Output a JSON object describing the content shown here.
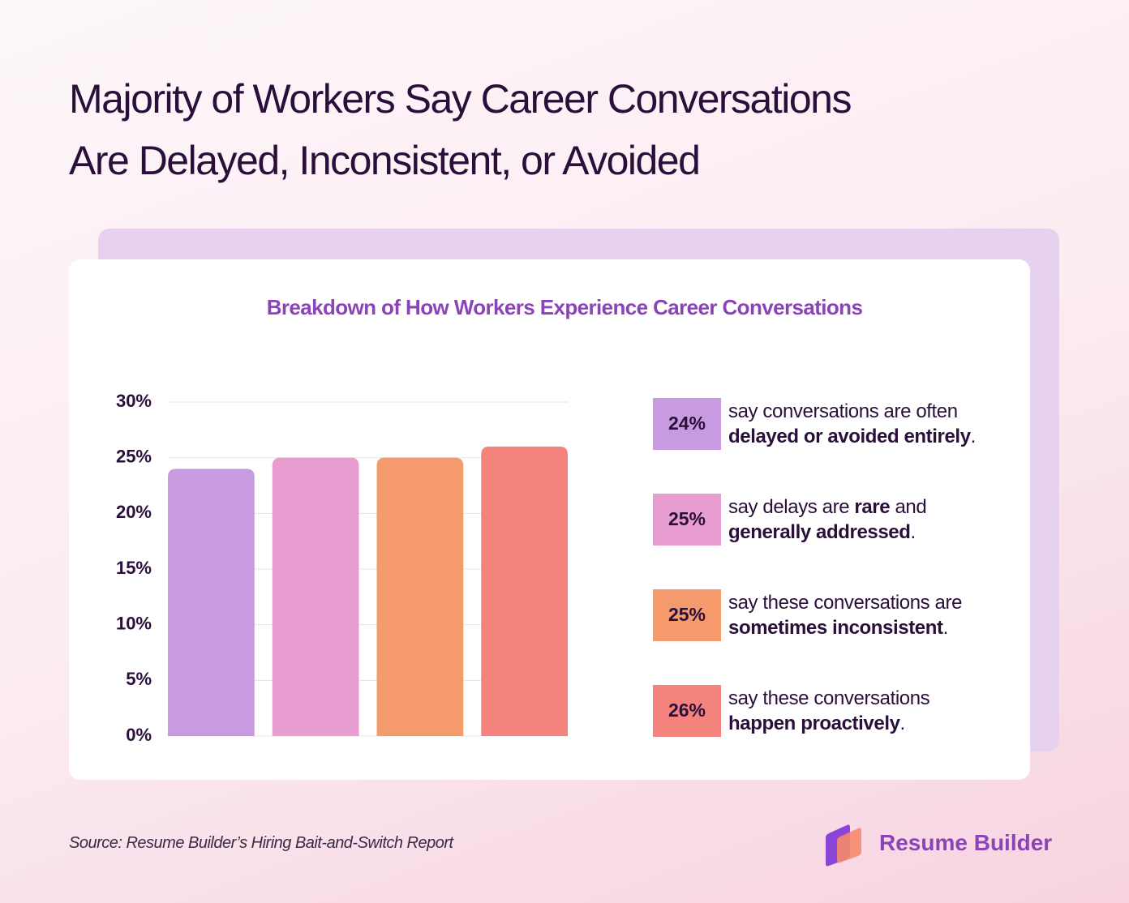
{
  "title": [
    "Majority of Workers Say Career Conversations",
    "Are Delayed, Inconsistent, or Avoided"
  ],
  "chart_data": {
    "type": "bar",
    "title": "Breakdown of How Workers Experience Career Conversations",
    "categories": [
      null,
      null,
      null,
      null
    ],
    "values": [
      24,
      25,
      25,
      26
    ],
    "value_labels": [
      "24%",
      "25%",
      "25%",
      "26%"
    ],
    "colors": [
      "#c89be0",
      "#e89dd0",
      "#f49a6c",
      "#f4837d"
    ],
    "ylim": [
      0,
      30
    ],
    "yticks": [
      {
        "value": 0,
        "label": "0%"
      },
      {
        "value": 5,
        "label": "5%"
      },
      {
        "value": 10,
        "label": "10%"
      },
      {
        "value": 15,
        "label": "15%"
      },
      {
        "value": 20,
        "label": "20%"
      },
      {
        "value": 25,
        "label": "25%"
      },
      {
        "value": 30,
        "label": "30%"
      }
    ],
    "grid": true,
    "descriptions": [
      [
        [
          {
            "text": "say conversations are often",
            "bold": false
          }
        ],
        [
          {
            "text": "delayed or avoided entirely",
            "bold": true
          },
          {
            "text": ".",
            "bold": false
          }
        ]
      ],
      [
        [
          {
            "text": "say delays are ",
            "bold": false
          },
          {
            "text": "rare",
            "bold": true
          },
          {
            "text": " and",
            "bold": false
          }
        ],
        [
          {
            "text": "generally addressed",
            "bold": true
          },
          {
            "text": ".",
            "bold": false
          }
        ]
      ],
      [
        [
          {
            "text": "say these conversations are",
            "bold": false
          }
        ],
        [
          {
            "text": "sometimes inconsistent",
            "bold": true
          },
          {
            "text": ".",
            "bold": false
          }
        ]
      ],
      [
        [
          {
            "text": "say these conversations",
            "bold": false
          }
        ],
        [
          {
            "text": "happen proactively",
            "bold": true
          },
          {
            "text": ".",
            "bold": false
          }
        ]
      ]
    ]
  },
  "source": "Source: Resume Builder’s Hiring Bait-and-Switch Report",
  "brand": "Resume Builder"
}
